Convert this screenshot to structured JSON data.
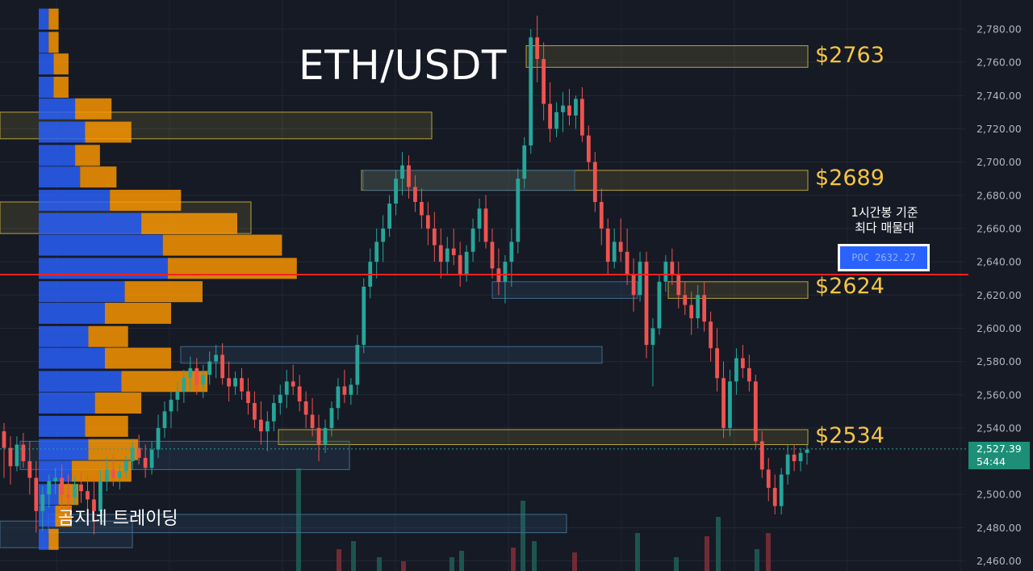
{
  "chart_data": {
    "type": "candlestick",
    "symbol": "ETH/USDT",
    "y_axis": {
      "ticks": [
        "2,780.00",
        "2,760.00",
        "2,740.00",
        "2,720.00",
        "2,700.00",
        "2,680.00",
        "2,660.00",
        "2,640.00",
        "2,620.00",
        "2,600.00",
        "2,580.00",
        "2,560.00",
        "2,540.00",
        "2,500.00",
        "2,480.00",
        "2,460.00"
      ],
      "ylim": [
        2451,
        2791
      ]
    },
    "last_price": {
      "value": 2527.39,
      "label": "2,527.39",
      "countdown": "54:44"
    },
    "levels": [
      {
        "label": "$2763",
        "value": 2763
      },
      {
        "label": "$2689",
        "value": 2689
      },
      {
        "label": "$2624",
        "value": 2624
      },
      {
        "label": "$2534",
        "value": 2534
      }
    ],
    "poc": {
      "label": "POC  2632.27",
      "value": 2632.27,
      "note_line1": "1시간봉 기준",
      "note_line2": "최다 매물대"
    },
    "volume_profile": [
      {
        "price": 2786,
        "buy": 6,
        "sell": 6
      },
      {
        "price": 2772,
        "buy": 6,
        "sell": 6
      },
      {
        "price": 2759,
        "buy": 9,
        "sell": 9
      },
      {
        "price": 2745,
        "buy": 9,
        "sell": 9
      },
      {
        "price": 2732,
        "buy": 22,
        "sell": 22
      },
      {
        "price": 2718,
        "buy": 28,
        "sell": 28
      },
      {
        "price": 2704,
        "buy": 22,
        "sell": 15
      },
      {
        "price": 2691,
        "buy": 25,
        "sell": 22
      },
      {
        "price": 2677,
        "buy": 43,
        "sell": 43
      },
      {
        "price": 2663,
        "buy": 62,
        "sell": 58
      },
      {
        "price": 2650,
        "buy": 75,
        "sell": 72
      },
      {
        "price": 2636,
        "buy": 78,
        "sell": 78
      },
      {
        "price": 2622,
        "buy": 52,
        "sell": 47
      },
      {
        "price": 2609,
        "buy": 40,
        "sell": 40
      },
      {
        "price": 2595,
        "buy": 30,
        "sell": 24
      },
      {
        "price": 2582,
        "buy": 40,
        "sell": 40
      },
      {
        "price": 2568,
        "buy": 50,
        "sell": 52
      },
      {
        "price": 2555,
        "buy": 34,
        "sell": 28
      },
      {
        "price": 2541,
        "buy": 28,
        "sell": 26
      },
      {
        "price": 2527,
        "buy": 30,
        "sell": 30
      },
      {
        "price": 2514,
        "buy": 20,
        "sell": 36
      },
      {
        "price": 2500,
        "buy": 12,
        "sell": 12
      },
      {
        "price": 2487,
        "buy": 10,
        "sell": 10
      },
      {
        "price": 2473,
        "buy": 6,
        "sell": 6
      }
    ],
    "candles": [
      [
        2538,
        2543,
        2510,
        2528
      ],
      [
        2528,
        2535,
        2506,
        2517
      ],
      [
        2517,
        2535,
        2514,
        2530
      ],
      [
        2530,
        2537,
        2516,
        2520
      ],
      [
        2520,
        2532,
        2500,
        2510
      ],
      [
        2510,
        2520,
        2477,
        2490
      ],
      [
        2490,
        2505,
        2478,
        2500
      ],
      [
        2500,
        2512,
        2492,
        2508
      ],
      [
        2508,
        2516,
        2500,
        2510
      ],
      [
        2510,
        2518,
        2490,
        2500
      ],
      [
        2500,
        2512,
        2488,
        2498
      ],
      [
        2498,
        2510,
        2494,
        2506
      ],
      [
        2506,
        2514,
        2495,
        2502
      ],
      [
        2502,
        2512,
        2490,
        2497
      ],
      [
        2497,
        2510,
        2476,
        2490
      ],
      [
        2490,
        2515,
        2485,
        2508
      ],
      [
        2508,
        2522,
        2502,
        2515
      ],
      [
        2515,
        2524,
        2505,
        2510
      ],
      [
        2510,
        2518,
        2503,
        2514
      ],
      [
        2514,
        2523,
        2510,
        2520
      ],
      [
        2520,
        2532,
        2515,
        2528
      ],
      [
        2528,
        2536,
        2518,
        2522
      ],
      [
        2522,
        2530,
        2510,
        2516
      ],
      [
        2516,
        2532,
        2512,
        2527
      ],
      [
        2527,
        2548,
        2522,
        2540
      ],
      [
        2540,
        2556,
        2534,
        2550
      ],
      [
        2550,
        2562,
        2540,
        2557
      ],
      [
        2557,
        2568,
        2550,
        2562
      ],
      [
        2562,
        2575,
        2555,
        2570
      ],
      [
        2570,
        2583,
        2562,
        2576
      ],
      [
        2576,
        2582,
        2560,
        2566
      ],
      [
        2566,
        2578,
        2558,
        2572
      ],
      [
        2572,
        2586,
        2566,
        2580
      ],
      [
        2580,
        2590,
        2570,
        2584
      ],
      [
        2584,
        2591,
        2566,
        2570
      ],
      [
        2570,
        2580,
        2556,
        2565
      ],
      [
        2565,
        2574,
        2560,
        2570
      ],
      [
        2570,
        2576,
        2557,
        2562
      ],
      [
        2562,
        2570,
        2548,
        2555
      ],
      [
        2555,
        2562,
        2540,
        2545
      ],
      [
        2545,
        2556,
        2530,
        2538
      ],
      [
        2538,
        2550,
        2526,
        2544
      ],
      [
        2544,
        2560,
        2538,
        2555
      ],
      [
        2555,
        2566,
        2548,
        2560
      ],
      [
        2560,
        2575,
        2552,
        2568
      ],
      [
        2568,
        2578,
        2560,
        2565
      ],
      [
        2565,
        2572,
        2550,
        2556
      ],
      [
        2556,
        2562,
        2540,
        2548
      ],
      [
        2548,
        2558,
        2535,
        2540
      ],
      [
        2540,
        2548,
        2520,
        2530
      ],
      [
        2530,
        2545,
        2525,
        2540
      ],
      [
        2540,
        2556,
        2535,
        2552
      ],
      [
        2552,
        2570,
        2545,
        2565
      ],
      [
        2565,
        2575,
        2555,
        2560
      ],
      [
        2560,
        2570,
        2554,
        2566
      ],
      [
        2566,
        2596,
        2560,
        2590
      ],
      [
        2590,
        2630,
        2585,
        2625
      ],
      [
        2625,
        2648,
        2618,
        2640
      ],
      [
        2640,
        2660,
        2630,
        2652
      ],
      [
        2652,
        2668,
        2640,
        2660
      ],
      [
        2660,
        2680,
        2655,
        2675
      ],
      [
        2675,
        2695,
        2668,
        2690
      ],
      [
        2690,
        2706,
        2680,
        2698
      ],
      [
        2698,
        2704,
        2678,
        2685
      ],
      [
        2685,
        2692,
        2670,
        2676
      ],
      [
        2676,
        2684,
        2660,
        2668
      ],
      [
        2668,
        2676,
        2650,
        2660
      ],
      [
        2660,
        2670,
        2640,
        2650
      ],
      [
        2650,
        2660,
        2630,
        2640
      ],
      [
        2640,
        2655,
        2632,
        2648
      ],
      [
        2648,
        2660,
        2638,
        2644
      ],
      [
        2644,
        2652,
        2625,
        2632
      ],
      [
        2632,
        2650,
        2628,
        2646
      ],
      [
        2646,
        2666,
        2640,
        2660
      ],
      [
        2660,
        2678,
        2652,
        2672
      ],
      [
        2672,
        2680,
        2648,
        2652
      ],
      [
        2652,
        2660,
        2630,
        2636
      ],
      [
        2636,
        2648,
        2620,
        2628
      ],
      [
        2628,
        2644,
        2615,
        2640
      ],
      [
        2640,
        2660,
        2625,
        2652
      ],
      [
        2652,
        2696,
        2645,
        2690
      ],
      [
        2690,
        2715,
        2684,
        2710
      ],
      [
        2710,
        2780,
        2705,
        2775
      ],
      [
        2775,
        2788,
        2748,
        2762
      ],
      [
        2762,
        2772,
        2725,
        2735
      ],
      [
        2735,
        2748,
        2712,
        2720
      ],
      [
        2720,
        2736,
        2715,
        2730
      ],
      [
        2730,
        2742,
        2718,
        2734
      ],
      [
        2734,
        2744,
        2722,
        2728
      ],
      [
        2728,
        2740,
        2720,
        2738
      ],
      [
        2738,
        2745,
        2712,
        2716
      ],
      [
        2716,
        2722,
        2695,
        2700
      ],
      [
        2700,
        2706,
        2670,
        2676
      ],
      [
        2676,
        2684,
        2650,
        2660
      ],
      [
        2660,
        2666,
        2632,
        2640
      ],
      [
        2640,
        2660,
        2636,
        2652
      ],
      [
        2652,
        2666,
        2640,
        2646
      ],
      [
        2646,
        2660,
        2626,
        2632
      ],
      [
        2632,
        2642,
        2610,
        2620
      ],
      [
        2620,
        2646,
        2616,
        2640
      ],
      [
        2640,
        2646,
        2582,
        2590
      ],
      [
        2590,
        2606,
        2565,
        2600
      ],
      [
        2600,
        2632,
        2596,
        2628
      ],
      [
        2628,
        2644,
        2622,
        2640
      ],
      [
        2640,
        2648,
        2626,
        2632
      ],
      [
        2632,
        2640,
        2612,
        2620
      ],
      [
        2620,
        2628,
        2608,
        2614
      ],
      [
        2614,
        2622,
        2596,
        2606
      ],
      [
        2606,
        2626,
        2600,
        2620
      ],
      [
        2620,
        2628,
        2598,
        2604
      ],
      [
        2604,
        2610,
        2580,
        2588
      ],
      [
        2588,
        2600,
        2562,
        2570
      ],
      [
        2570,
        2580,
        2534,
        2540
      ],
      [
        2540,
        2575,
        2535,
        2568
      ],
      [
        2568,
        2588,
        2560,
        2582
      ],
      [
        2582,
        2590,
        2570,
        2576
      ],
      [
        2576,
        2584,
        2562,
        2568
      ],
      [
        2568,
        2572,
        2528,
        2532
      ],
      [
        2532,
        2538,
        2510,
        2515
      ],
      [
        2515,
        2522,
        2496,
        2504
      ],
      [
        2504,
        2512,
        2488,
        2493
      ],
      [
        2493,
        2516,
        2488,
        2512
      ],
      [
        2512,
        2530,
        2506,
        2524
      ],
      [
        2524,
        2530,
        2514,
        2520
      ],
      [
        2520,
        2528,
        2514,
        2525
      ],
      [
        2525,
        2530,
        2518,
        2527
      ]
    ]
  },
  "ui": {
    "title": "ETH/USDT",
    "watermark": "곰지네 트레이딩"
  },
  "colors": {
    "up": "#26a69a",
    "down": "#ef5350",
    "profile_buy": "#2962ff",
    "profile_sell": "#ff9800",
    "poc_line": "#ff2020",
    "level_label": "#f5c542",
    "background": "#161a25"
  }
}
